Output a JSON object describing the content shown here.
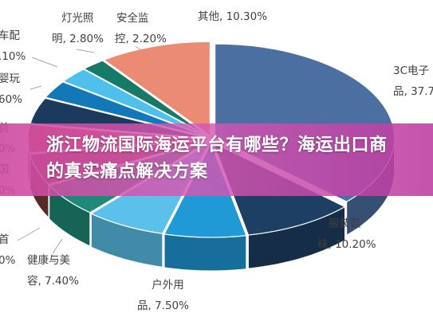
{
  "banner": {
    "title": "浙江物流国际海运平台有哪些？海运出口商的真实痛点解决方案"
  },
  "chart_data": {
    "type": "pie",
    "title": "",
    "slices": [
      {
        "label_line1": "3C电子",
        "label_line2": "品, 37.7",
        "name": "3C电子产品",
        "value": 37.7,
        "color": "#4a6fa0"
      },
      {
        "label_line1": "服装鞋",
        "label_line2": "袜, 10.20%",
        "name": "服装鞋袜",
        "value": 10.2,
        "color": "#1d3f63"
      },
      {
        "label_line1": "户外用",
        "label_line2": "品, 7.50%",
        "name": "户外用品",
        "value": 7.5,
        "color": "#1f9ad6"
      },
      {
        "label_line1": "健康与美",
        "label_line2": "容, 7.40%",
        "name": "健康与美容",
        "value": 7.4,
        "color": "#5cc1ea"
      },
      {
        "label_line1": "首",
        "label_line2": "0%",
        "name": "",
        "value": 6.0,
        "color": "#1d8b78"
      },
      {
        "label_line1": "国",
        "label_line2": "0%",
        "name": "",
        "value": 5.5,
        "color": "#7a3a32"
      },
      {
        "label_line1": "首",
        "label_line2": "0%",
        "name": "",
        "value": 4.9,
        "color": "#b34a3c"
      },
      {
        "label_line1": "婴玩",
        "label_line2": "60%",
        "name": "",
        "value": 4.6,
        "color": "#1b3a5c"
      },
      {
        "label_line1": "车配",
        "label_line2": ".10%",
        "name": "",
        "value": 3.1,
        "color": "#1378b8"
      },
      {
        "label_line1": "灯光照",
        "label_line2": "明, 2.80%",
        "name": "灯光照明",
        "value": 2.8,
        "color": "#4fc0ec"
      },
      {
        "label_line1": "安全监",
        "label_line2": "控, 2.20%",
        "name": "安全监控",
        "value": 2.2,
        "color": "#177a66"
      },
      {
        "label_line1": "其他, 10.30%",
        "label_line2": "",
        "name": "其他",
        "value": 10.3,
        "color": "#ec8b74"
      }
    ]
  }
}
